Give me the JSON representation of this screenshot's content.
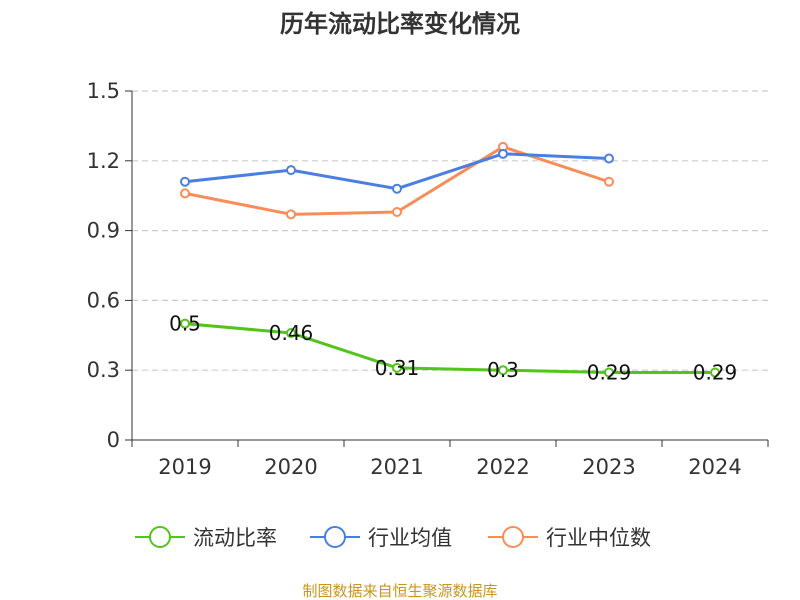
{
  "chart_data": {
    "type": "line",
    "title": "历年流动比率变化情况",
    "categories": [
      "2019",
      "2020",
      "2021",
      "2022",
      "2023",
      "2024"
    ],
    "y_ticks": [
      "0",
      "0.3",
      "0.6",
      "0.9",
      "1.2",
      "1.5"
    ],
    "ylim": [
      0,
      1.5
    ],
    "grid": "horizontal dashed",
    "legend_position": "bottom",
    "series": [
      {
        "name": "流动比率",
        "color": "#52c41a",
        "values": [
          0.5,
          0.46,
          0.31,
          0.3,
          0.29,
          0.29
        ],
        "labels": [
          "0.5",
          "0.46",
          "0.31",
          "0.3",
          "0.29",
          "0.29"
        ]
      },
      {
        "name": "行业均值",
        "color": "#4a7ee0",
        "values": [
          1.11,
          1.16,
          1.08,
          1.23,
          1.21,
          null
        ]
      },
      {
        "name": "行业中位数",
        "color": "#f98d5a",
        "values": [
          1.06,
          0.97,
          0.98,
          1.26,
          1.11,
          null
        ]
      }
    ]
  },
  "source": {
    "text": "制图数据来自恒生聚源数据库",
    "color": "#c8961e"
  }
}
